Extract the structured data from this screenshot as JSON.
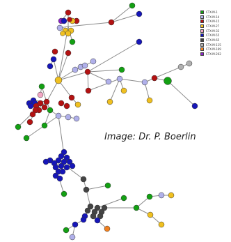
{
  "legend": {
    "items": [
      {
        "label": "CTX-M-1",
        "color": "#13a013"
      },
      {
        "label": "CTX-M-14",
        "color": "#b0b0ea"
      },
      {
        "label": "CTX-M-15",
        "color": "#b31212"
      },
      {
        "label": "CTX-M-27",
        "color": "#f0c020"
      },
      {
        "label": "CTX-M-32",
        "color": "#f2a6c4"
      },
      {
        "label": "CTX-M-55",
        "color": "#1616b8"
      },
      {
        "label": "CTX-M-65",
        "color": "#444444"
      },
      {
        "label": "CTX-M-115",
        "color": "#b0b0b0"
      },
      {
        "label": "CTX-M-169",
        "color": "#f08020"
      },
      {
        "label": "CTX-M-202",
        "color": "#8a22c8"
      }
    ]
  },
  "credit": "Image: Dr. P. Boerlin"
}
